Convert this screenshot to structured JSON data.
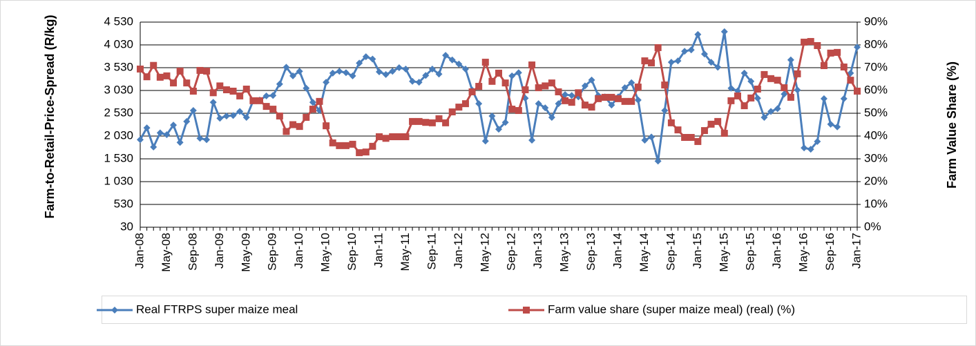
{
  "chart_data": {
    "type": "line",
    "ylabel": "Farm-to-Retail-Price-Spread (R/kg)",
    "y2label": "Farm Value Share (%)",
    "categories": [
      "Jan-08",
      null,
      null,
      null,
      "May-08",
      null,
      null,
      null,
      "Sep-08",
      null,
      null,
      null,
      "Jan-09",
      null,
      null,
      null,
      "May-09",
      null,
      null,
      null,
      "Sep-09",
      null,
      null,
      null,
      "Jan-10",
      null,
      null,
      null,
      "May-10",
      null,
      null,
      null,
      "Sep-10",
      null,
      null,
      null,
      "Jan-11",
      null,
      null,
      null,
      "May-11",
      null,
      null,
      null,
      "Sep-11",
      null,
      null,
      null,
      "Jan-12",
      null,
      null,
      null,
      "May-12",
      null,
      null,
      null,
      "Sep-12",
      null,
      null,
      null,
      "Jan-13",
      null,
      null,
      null,
      "May-13",
      null,
      null,
      null,
      "Sep-13",
      null,
      null,
      null,
      "Jan-14",
      null,
      null,
      null,
      "May-14",
      null,
      null,
      null,
      "Sep-14",
      null,
      null,
      null,
      "Jan-15",
      null,
      null,
      null,
      "May-15",
      null,
      null,
      null,
      "Sep-15",
      null,
      null,
      null,
      "Jan-16",
      null,
      null,
      null,
      "May-16",
      null,
      null,
      null,
      "Sep-16",
      null,
      null,
      null,
      "Jan-17"
    ],
    "series": [
      {
        "name": "Real FTRPS super maize meal",
        "color": "#4a7ebb",
        "marker": "diamond",
        "axis": "y",
        "values": [
          1950,
          2210,
          1790,
          2100,
          2060,
          2270,
          1890,
          2350,
          2590,
          1980,
          1950,
          2770,
          2420,
          2470,
          2480,
          2570,
          2440,
          2800,
          2820,
          2910,
          2920,
          3170,
          3540,
          3350,
          3450,
          3080,
          2770,
          2590,
          3210,
          3410,
          3450,
          3420,
          3350,
          3630,
          3770,
          3720,
          3440,
          3380,
          3450,
          3530,
          3500,
          3230,
          3210,
          3360,
          3500,
          3390,
          3800,
          3700,
          3610,
          3500,
          3040,
          2740,
          1920,
          2470,
          2180,
          2330,
          3350,
          3420,
          2860,
          1940,
          2740,
          2650,
          2440,
          2740,
          2940,
          2920,
          2890,
          3130,
          3260,
          2920,
          2890,
          2710,
          2890,
          3090,
          3200,
          2820,
          1940,
          2010,
          1480,
          2590,
          3650,
          3680,
          3890,
          3920,
          4260,
          3830,
          3650,
          3540,
          4320,
          3080,
          3020,
          3410,
          3230,
          2860,
          2440,
          2570,
          2630,
          2950,
          3700,
          3040,
          1770,
          1740,
          1910,
          2850,
          2290,
          2230,
          2850,
          3410,
          3980
        ]
      },
      {
        "name": "Farm value share (super maize meal) (real) (%)",
        "color": "#be4b48",
        "marker": "square",
        "axis": "y2",
        "values": [
          69.4,
          66,
          71,
          65.8,
          66.4,
          63.3,
          68.5,
          63.3,
          59.7,
          68.8,
          68.5,
          59,
          62,
          60.3,
          59.7,
          57.6,
          60.6,
          55.5,
          55.5,
          53,
          51.8,
          48.8,
          42,
          45,
          44.2,
          48.2,
          51.8,
          55.2,
          44.5,
          37,
          35.8,
          35.8,
          36.4,
          32.7,
          33,
          35.5,
          39.7,
          39,
          39.7,
          39.7,
          39.7,
          46.4,
          46.4,
          46,
          45.8,
          47.6,
          45.8,
          50.6,
          52.7,
          54.2,
          59.4,
          61.8,
          72.4,
          64,
          67.6,
          63.3,
          51.8,
          51.2,
          60.3,
          71.2,
          61.2,
          62,
          63.3,
          59.4,
          55.5,
          54.8,
          59,
          53.6,
          52.7,
          56.4,
          57,
          57,
          56.4,
          55.2,
          55.2,
          61.5,
          73,
          72.1,
          78.8,
          62.4,
          45.8,
          42.7,
          39.4,
          39.4,
          37.6,
          42.4,
          45.2,
          46.4,
          41.2,
          55.5,
          57.6,
          53.3,
          56.7,
          60.6,
          67,
          65.2,
          64.5,
          61.2,
          57,
          67.3,
          81.2,
          81.5,
          79.7,
          70.9,
          76.4,
          76.7,
          70.3,
          64.5,
          59.7
        ]
      }
    ],
    "ylim": [
      30,
      4530
    ],
    "yticks": [
      30,
      530,
      {
        "value": 1030,
        "label": "1 030"
      },
      {
        "value": 1530,
        "label": "1 530"
      },
      {
        "value": 2030,
        "label": "2 030"
      },
      {
        "value": 2530,
        "label": "2 530"
      },
      {
        "value": 3030,
        "label": "3 030"
      },
      {
        "value": 3530,
        "label": "3 530"
      },
      {
        "value": 4030,
        "label": "4 030"
      },
      {
        "value": 4530,
        "label": "4 530"
      }
    ],
    "y2lim": [
      0,
      90
    ],
    "y2ticks": [
      {
        "value": 0,
        "label": "0%"
      },
      {
        "value": 10,
        "label": "10%"
      },
      {
        "value": 20,
        "label": "20%"
      },
      {
        "value": 30,
        "label": "30%"
      },
      {
        "value": 40,
        "label": "40%"
      },
      {
        "value": 50,
        "label": "50%"
      },
      {
        "value": 60,
        "label": "60%"
      },
      {
        "value": 70,
        "label": "70%"
      },
      {
        "value": 80,
        "label": "80%"
      },
      {
        "value": 90,
        "label": "90%"
      }
    ],
    "grid": true,
    "legend": "bottom"
  }
}
